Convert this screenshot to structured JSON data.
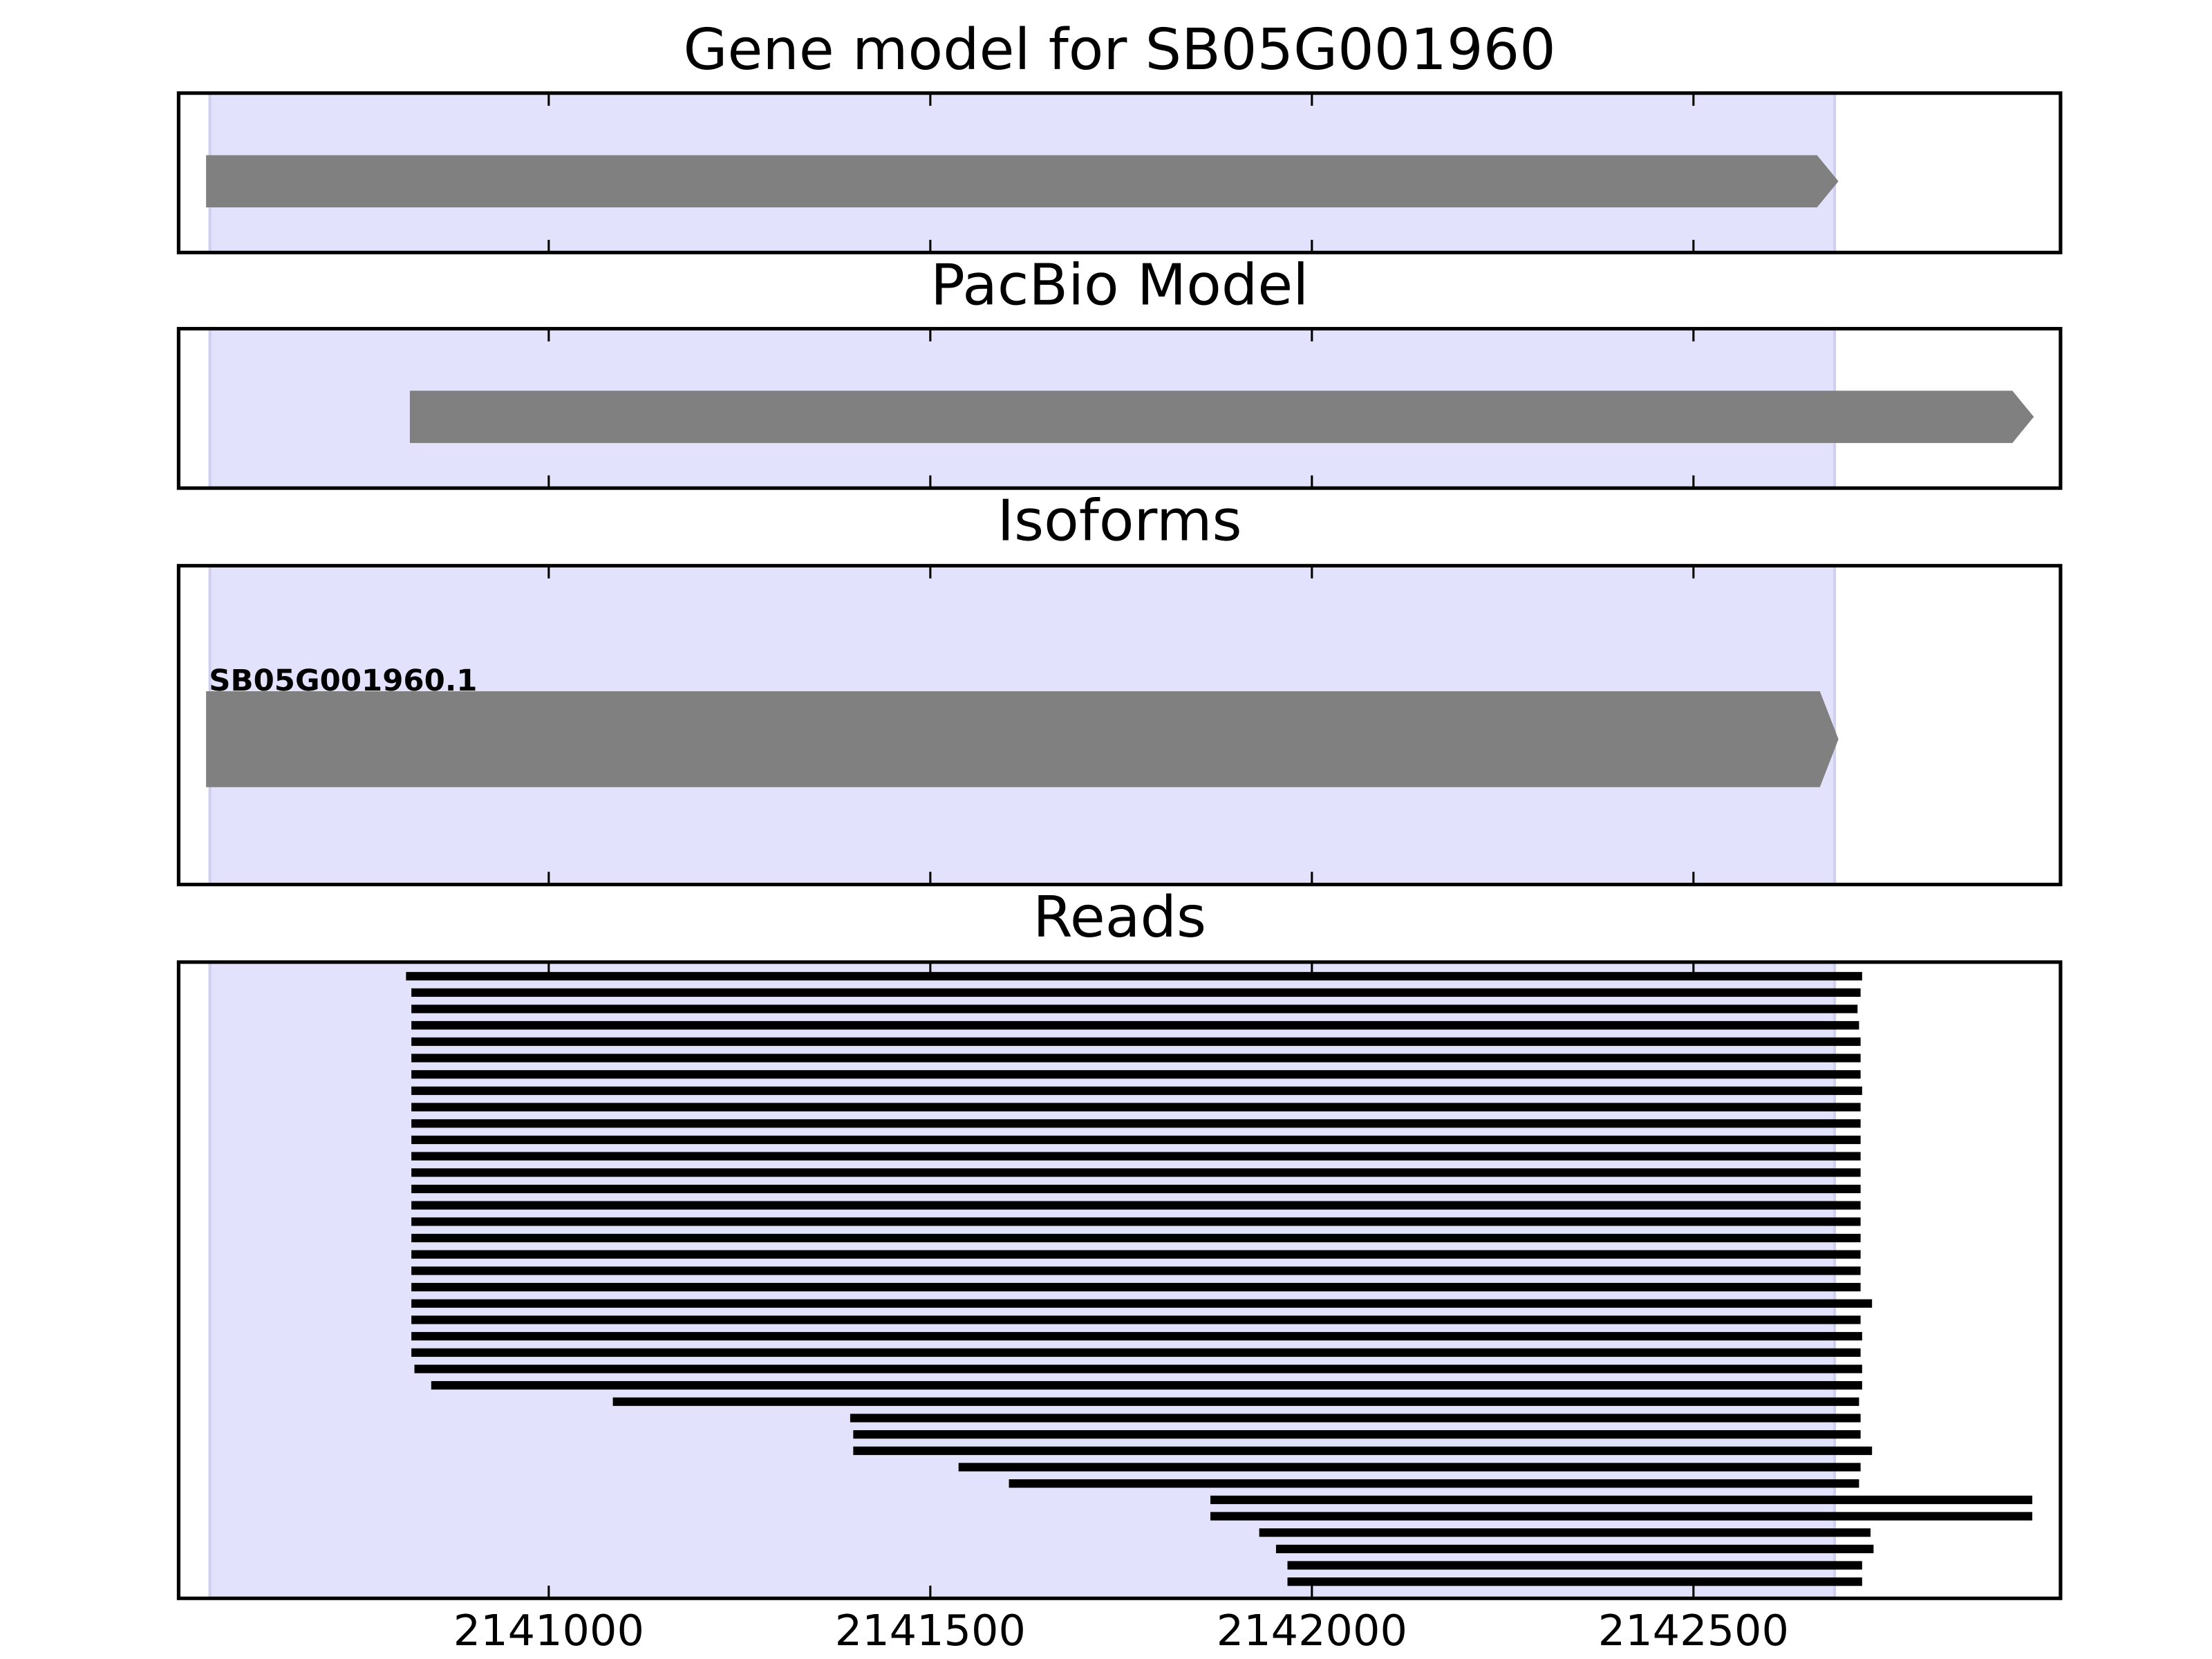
{
  "chart_data": [
    {
      "type": "gene",
      "title": "Gene model for SB05G001960",
      "xlim": [
        2140515,
        2142981
      ],
      "xticks": [
        2141000,
        2141500,
        2142000,
        2142500
      ],
      "highlight": [
        2140556,
        2142685
      ],
      "color": "#808080",
      "features": [
        {
          "start": 2140551,
          "end": 2142690
        }
      ]
    },
    {
      "type": "gene",
      "title": "PacBio Model",
      "xlim": [
        2140515,
        2142981
      ],
      "xticks": [
        2141000,
        2141500,
        2142000,
        2142500
      ],
      "highlight": [
        2140556,
        2142685
      ],
      "color": "#808080",
      "features": [
        {
          "start": 2140818,
          "end": 2142946
        }
      ]
    },
    {
      "type": "gene",
      "title": "Isoforms",
      "xlim": [
        2140515,
        2142981
      ],
      "xticks": [
        2141000,
        2141500,
        2142000,
        2142500
      ],
      "highlight": [
        2140556,
        2142685
      ],
      "color": "#808080",
      "features": [
        {
          "name": "SB05G001960.1",
          "start": 2140551,
          "end": 2142690
        }
      ]
    },
    {
      "type": "reads",
      "title": "Reads",
      "xlim": [
        2140515,
        2142981
      ],
      "xticks": [
        2141000,
        2141500,
        2142000,
        2142500
      ],
      "highlight": [
        2140556,
        2142685
      ],
      "color": "#000000",
      "starts": [
        2140813,
        2140820,
        2140820,
        2140820,
        2140820,
        2140820,
        2140820,
        2140820,
        2140820,
        2140820,
        2140820,
        2140820,
        2140820,
        2140820,
        2140820,
        2140820,
        2140820,
        2140820,
        2140820,
        2140820,
        2140820,
        2140820,
        2140820,
        2140820,
        2140824,
        2140846,
        2141084,
        2141395,
        2141399,
        2141399,
        2141537,
        2141603,
        2141867,
        2141867,
        2141931,
        2141953,
        2141968,
        2141968
      ],
      "ends": [
        2142721,
        2142719,
        2142715,
        2142717,
        2142719,
        2142719,
        2142719,
        2142721,
        2142719,
        2142719,
        2142719,
        2142719,
        2142719,
        2142719,
        2142719,
        2142719,
        2142719,
        2142719,
        2142719,
        2142719,
        2142734,
        2142719,
        2142721,
        2142719,
        2142721,
        2142721,
        2142717,
        2142719,
        2142719,
        2142734,
        2142719,
        2142717,
        2142944,
        2142944,
        2142732,
        2142736,
        2142721,
        2142721
      ]
    }
  ]
}
